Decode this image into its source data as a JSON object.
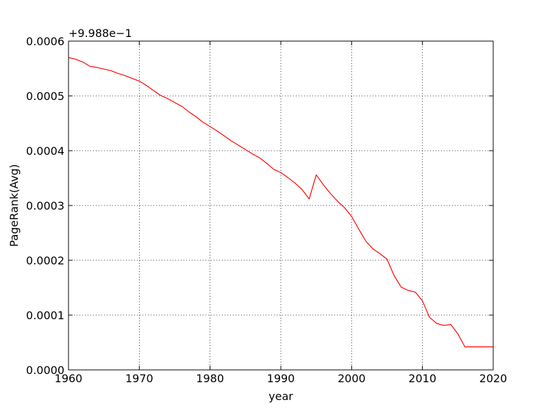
{
  "chart_data": {
    "type": "line",
    "title": "",
    "xlabel": "year",
    "ylabel": "PageRank(Avg)",
    "offset_label": "+9.988e−1",
    "xlim": [
      1960,
      2020
    ],
    "ylim": [
      0.0,
      0.0006
    ],
    "xticks": [
      "1960",
      "1970",
      "1980",
      "1990",
      "2000",
      "2010",
      "2020"
    ],
    "yticks": [
      "0.0000",
      "0.0001",
      "0.0002",
      "0.0003",
      "0.0004",
      "0.0005",
      "0.0006"
    ],
    "grid": true,
    "series": [
      {
        "color": "#ff0000",
        "x": [
          1960,
          1961,
          1962,
          1963,
          1964,
          1965,
          1966,
          1967,
          1968,
          1969,
          1970,
          1971,
          1972,
          1973,
          1974,
          1975,
          1976,
          1977,
          1978,
          1979,
          1980,
          1981,
          1982,
          1983,
          1984,
          1985,
          1986,
          1987,
          1988,
          1989,
          1990,
          1991,
          1992,
          1993,
          1994,
          1995,
          1996,
          1997,
          1998,
          1999,
          2000,
          2001,
          2002,
          2003,
          2004,
          2005,
          2006,
          2007,
          2008,
          2009,
          2010,
          2011,
          2012,
          2013,
          2014,
          2015,
          2016,
          2017,
          2018,
          2019,
          2020
        ],
        "values": [
          0.00057,
          0.000567,
          0.000562,
          0.000554,
          0.000552,
          0.000549,
          0.000546,
          0.000541,
          0.000537,
          0.000532,
          0.000527,
          0.000519,
          0.00051,
          0.000501,
          0.000495,
          0.000488,
          0.000481,
          0.000471,
          0.000462,
          0.000452,
          0.000444,
          0.000436,
          0.000427,
          0.000418,
          0.00041,
          0.000402,
          0.000394,
          0.000387,
          0.000377,
          0.000366,
          0.00036,
          0.000351,
          0.000341,
          0.000329,
          0.000312,
          0.000356,
          0.000338,
          0.000322,
          0.000308,
          0.000296,
          0.00028,
          0.000257,
          0.000235,
          0.000221,
          0.000212,
          0.000202,
          0.000172,
          0.000151,
          0.000145,
          0.000142,
          0.000126,
          9.6e-05,
          8.5e-05,
          8.1e-05,
          8.3e-05,
          6.6e-05,
          4.2e-05,
          4.2e-05,
          4.2e-05,
          4.2e-05,
          4.2e-05
        ]
      }
    ]
  }
}
